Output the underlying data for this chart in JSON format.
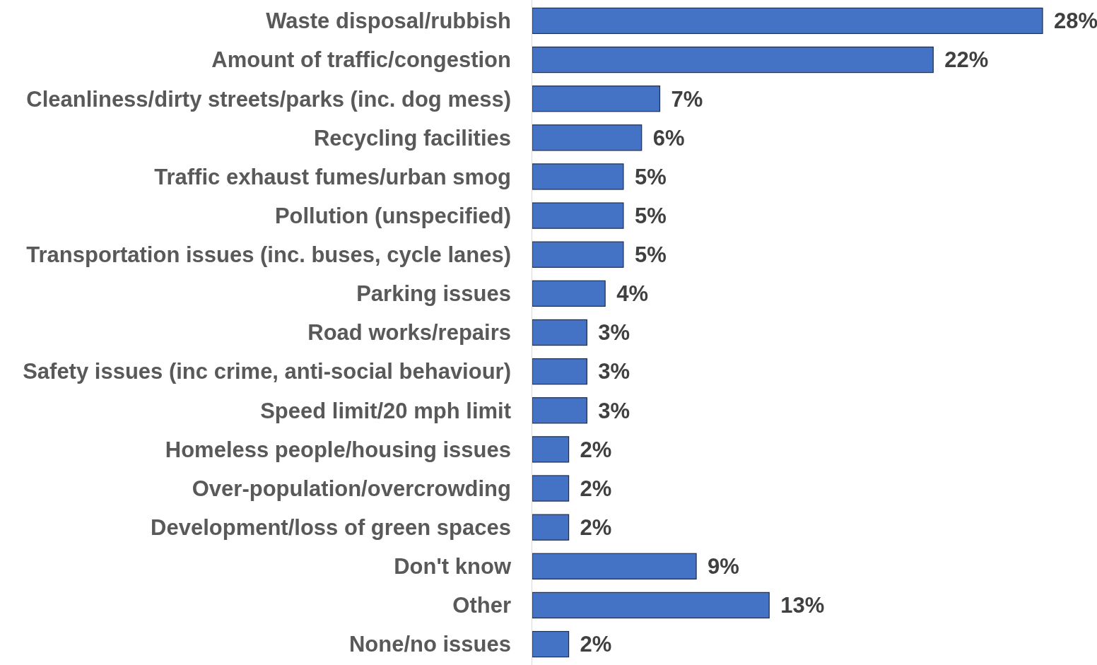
{
  "chart_data": {
    "type": "bar",
    "orientation": "horizontal",
    "categories": [
      "Waste disposal/rubbish",
      "Amount of traffic/congestion",
      "Cleanliness/dirty streets/parks (inc. dog mess)",
      "Recycling facilities",
      "Traffic exhaust fumes/urban smog",
      "Pollution (unspecified)",
      "Transportation issues (inc. buses, cycle lanes)",
      "Parking issues",
      "Road works/repairs",
      "Safety issues (inc crime, anti-social behaviour)",
      "Speed limit/20 mph limit",
      "Homeless people/housing issues",
      "Over-population/overcrowding",
      "Development/loss of green spaces",
      "Don't know",
      "Other",
      "None/no issues"
    ],
    "values": [
      28,
      22,
      7,
      6,
      5,
      5,
      5,
      4,
      3,
      3,
      3,
      2,
      2,
      2,
      9,
      13,
      2
    ],
    "value_labels": [
      "28%",
      "22%",
      "7%",
      "6%",
      "5%",
      "5%",
      "5%",
      "4%",
      "3%",
      "3%",
      "3%",
      "2%",
      "2%",
      "2%",
      "9%",
      "13%",
      "2%"
    ],
    "color": "#4472c4"
  }
}
